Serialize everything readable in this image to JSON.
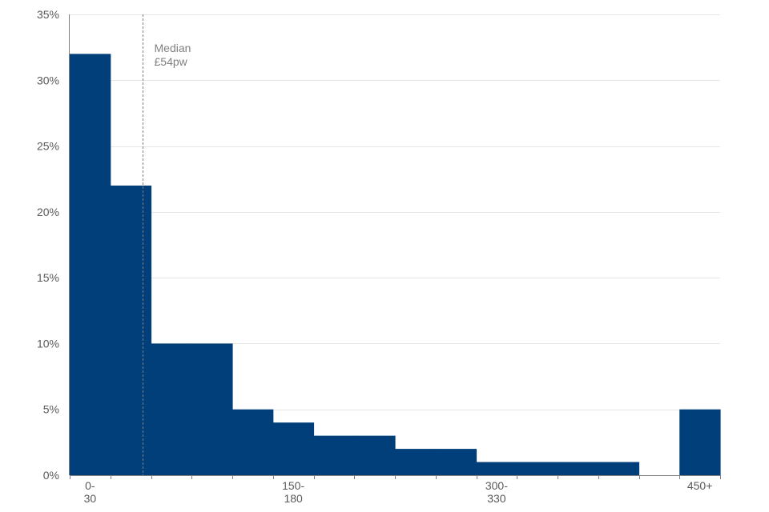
{
  "chart_data": {
    "type": "bar",
    "title": "",
    "xlabel": "",
    "ylabel": "",
    "x_tick_labels": [
      {
        "lines": [
          "0-",
          "30"
        ],
        "position": 0
      },
      {
        "lines": [
          "150-",
          "180"
        ],
        "position": 5
      },
      {
        "lines": [
          "300-",
          "330"
        ],
        "position": 10
      },
      {
        "lines": [
          "450+"
        ],
        "position": 15
      }
    ],
    "bins": [
      {
        "from": 0,
        "to": 30,
        "value": 32
      },
      {
        "from": 30,
        "to": 60,
        "value": 22
      },
      {
        "from": 60,
        "to": 90,
        "value": 10
      },
      {
        "from": 90,
        "to": 120,
        "value": 10
      },
      {
        "from": 120,
        "to": 150,
        "value": 5
      },
      {
        "from": 150,
        "to": 180,
        "value": 4
      },
      {
        "from": 180,
        "to": 210,
        "value": 3
      },
      {
        "from": 210,
        "to": 240,
        "value": 3
      },
      {
        "from": 240,
        "to": 270,
        "value": 2
      },
      {
        "from": 270,
        "to": 300,
        "value": 2
      },
      {
        "from": 300,
        "to": 330,
        "value": 1
      },
      {
        "from": 330,
        "to": 360,
        "value": 1
      },
      {
        "from": 360,
        "to": 390,
        "value": 1
      },
      {
        "from": 390,
        "to": 420,
        "value": 1
      },
      {
        "from": 420,
        "to": 450,
        "value": 0
      },
      {
        "from": 450,
        "to": null,
        "value": 5
      }
    ],
    "y_ticks": [
      "0%",
      "5%",
      "10%",
      "15%",
      "20%",
      "25%",
      "30%",
      "35%"
    ],
    "ylim": [
      0,
      35
    ],
    "grid": true,
    "median": {
      "value": 54,
      "label_lines": [
        "Median",
        "£54pw"
      ]
    },
    "colors": {
      "bar": "#003f7a",
      "grid": "#e6e6e6",
      "axis": "#7f7f7f",
      "median_line": "#7f7f7f"
    }
  }
}
